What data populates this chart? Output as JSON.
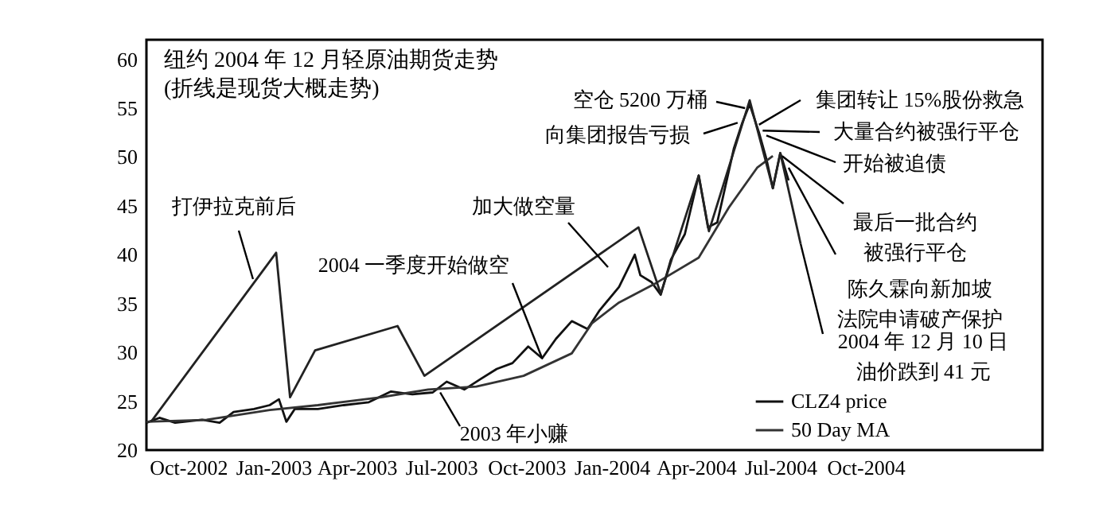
{
  "chart_data": {
    "type": "line",
    "title": "纽约 2004 年 12 月轻原油期货走势",
    "subtitle": "(折线是现货大概走势)",
    "xlim": [
      "2002-08-17",
      "2005-04-10"
    ],
    "xticks": [
      {
        "value": "2002-10-01",
        "label": "Oct-2002"
      },
      {
        "value": "2003-01-01",
        "label": "Jan-2003"
      },
      {
        "value": "2003-04-01",
        "label": "Apr-2003"
      },
      {
        "value": "2003-07-01",
        "label": "Jul-2003"
      },
      {
        "value": "2003-10-01",
        "label": "Oct-2003"
      },
      {
        "value": "2004-01-01",
        "label": "Jan-2004"
      },
      {
        "value": "2004-04-01",
        "label": "Apr-2004"
      },
      {
        "value": "2004-07-01",
        "label": "Jul-2004"
      },
      {
        "value": "2004-10-01",
        "label": "Oct-2004"
      }
    ],
    "ylim": [
      20,
      62
    ],
    "yticks": [
      20,
      25,
      30,
      35,
      40,
      45,
      50,
      55,
      60
    ],
    "legend": "bottom right",
    "series": [
      {
        "name": "CLZ4 price",
        "color": "#111111",
        "x": [
          "2002-08-17",
          "2002-08-31",
          "2002-09-17",
          "2002-10-16",
          "2002-11-04",
          "2002-11-19",
          "2002-12-11",
          "2002-12-28",
          "2003-01-07",
          "2003-01-15",
          "2003-01-24",
          "2003-02-18",
          "2003-03-18",
          "2003-04-14",
          "2003-05-08",
          "2003-05-31",
          "2003-06-22",
          "2003-07-07",
          "2003-07-26",
          "2003-08-13",
          "2003-08-30",
          "2003-09-16",
          "2003-10-03",
          "2003-10-18",
          "2003-11-02",
          "2003-11-19",
          "2003-12-06",
          "2003-12-19",
          "2004-01-09",
          "2004-01-26",
          "2004-02-01",
          "2004-02-13",
          "2004-02-23",
          "2004-03-05",
          "2004-03-20",
          "2004-04-04",
          "2004-04-14",
          "2004-04-24",
          "2004-05-12",
          "2004-05-21",
          "2004-05-29",
          "2004-06-08",
          "2004-06-16",
          "2004-06-23",
          "2004-07-01",
          "2004-07-10"
        ],
        "values": [
          22.8,
          23.3,
          22.8,
          23.1,
          22.8,
          23.9,
          24.2,
          24.6,
          25.2,
          22.9,
          24.2,
          24.2,
          24.6,
          24.9,
          26.0,
          25.7,
          25.9,
          27.0,
          26.2,
          27.3,
          28.3,
          28.9,
          30.6,
          29.4,
          31.4,
          33.2,
          32.4,
          34.3,
          36.7,
          40.0,
          37.9,
          37.2,
          35.9,
          39.5,
          42.1,
          48.1,
          42.8,
          43.3,
          50.9,
          53.5,
          55.4,
          52.5,
          49.8,
          46.8,
          50.4,
          47.6
        ]
      },
      {
        "name": "50 Day MA",
        "color": "#333333",
        "x": [
          "2002-08-17",
          "2002-10-21",
          "2002-12-28",
          "2003-02-18",
          "2003-04-27",
          "2003-06-17",
          "2003-08-08",
          "2003-09-28",
          "2003-11-19",
          "2003-12-11",
          "2004-01-09",
          "2004-02-18",
          "2004-04-04",
          "2004-05-07",
          "2004-06-06",
          "2004-06-23"
        ],
        "values": [
          22.9,
          23.1,
          24.1,
          24.6,
          25.4,
          26.2,
          26.5,
          27.6,
          29.9,
          33.0,
          35.1,
          37.1,
          39.7,
          44.9,
          48.9,
          50.1
        ]
      },
      {
        "color": "#222222",
        "x": [
          "2002-08-22",
          "2003-01-04",
          "2003-01-19",
          "2003-02-15",
          "2003-05-15",
          "2003-06-13",
          "2004-01-30",
          "2004-02-23",
          "2004-04-04",
          "2004-04-15",
          "2004-05-29",
          "2004-06-23",
          "2004-07-01",
          "2004-07-23"
        ],
        "values": [
          22.9,
          40.2,
          25.4,
          30.2,
          32.7,
          27.6,
          42.8,
          36.0,
          48.1,
          42.4,
          55.8,
          46.8,
          50.4,
          41.1
        ]
      }
    ],
    "annotations": [
      {
        "text": "打伊拉克前后",
        "x": "2002-12-10",
        "y": 37.5
      },
      {
        "text": "2004 一季度开始做空",
        "x": "2003-10-18",
        "y": 29.4
      },
      "加大做空量",
      {
        "text": "空仓 5200 万桶",
        "x": "2004-05-24",
        "y": 55.0
      },
      {
        "text": "向集团报告亏损",
        "x": "2004-05-16",
        "y": 53.5
      },
      {
        "text": "集团转让 15%股份救急",
        "x": "2004-06-08",
        "y": 53.3
      },
      {
        "text": "大量合约被强行平仓",
        "x": "2004-06-12",
        "y": 52.7
      },
      {
        "text": "开始被追债",
        "x": "2004-06-16",
        "y": 52.2
      },
      {
        "text": "最后一批合约被强行平仓",
        "x": "2004-07-03",
        "y": 50.1
      },
      {
        "text": "陈久霖向新加坡法院申请破产保护",
        "x": "2004-07-10",
        "y": 48.9
      },
      {
        "text": "2004 年 12 月 10 日油价跌到 41 元",
        "x": "2004-07-23",
        "y": 41.1
      },
      {
        "text": "2003 年小赚",
        "x": "2003-06-30",
        "y": 25.9
      }
    ]
  }
}
